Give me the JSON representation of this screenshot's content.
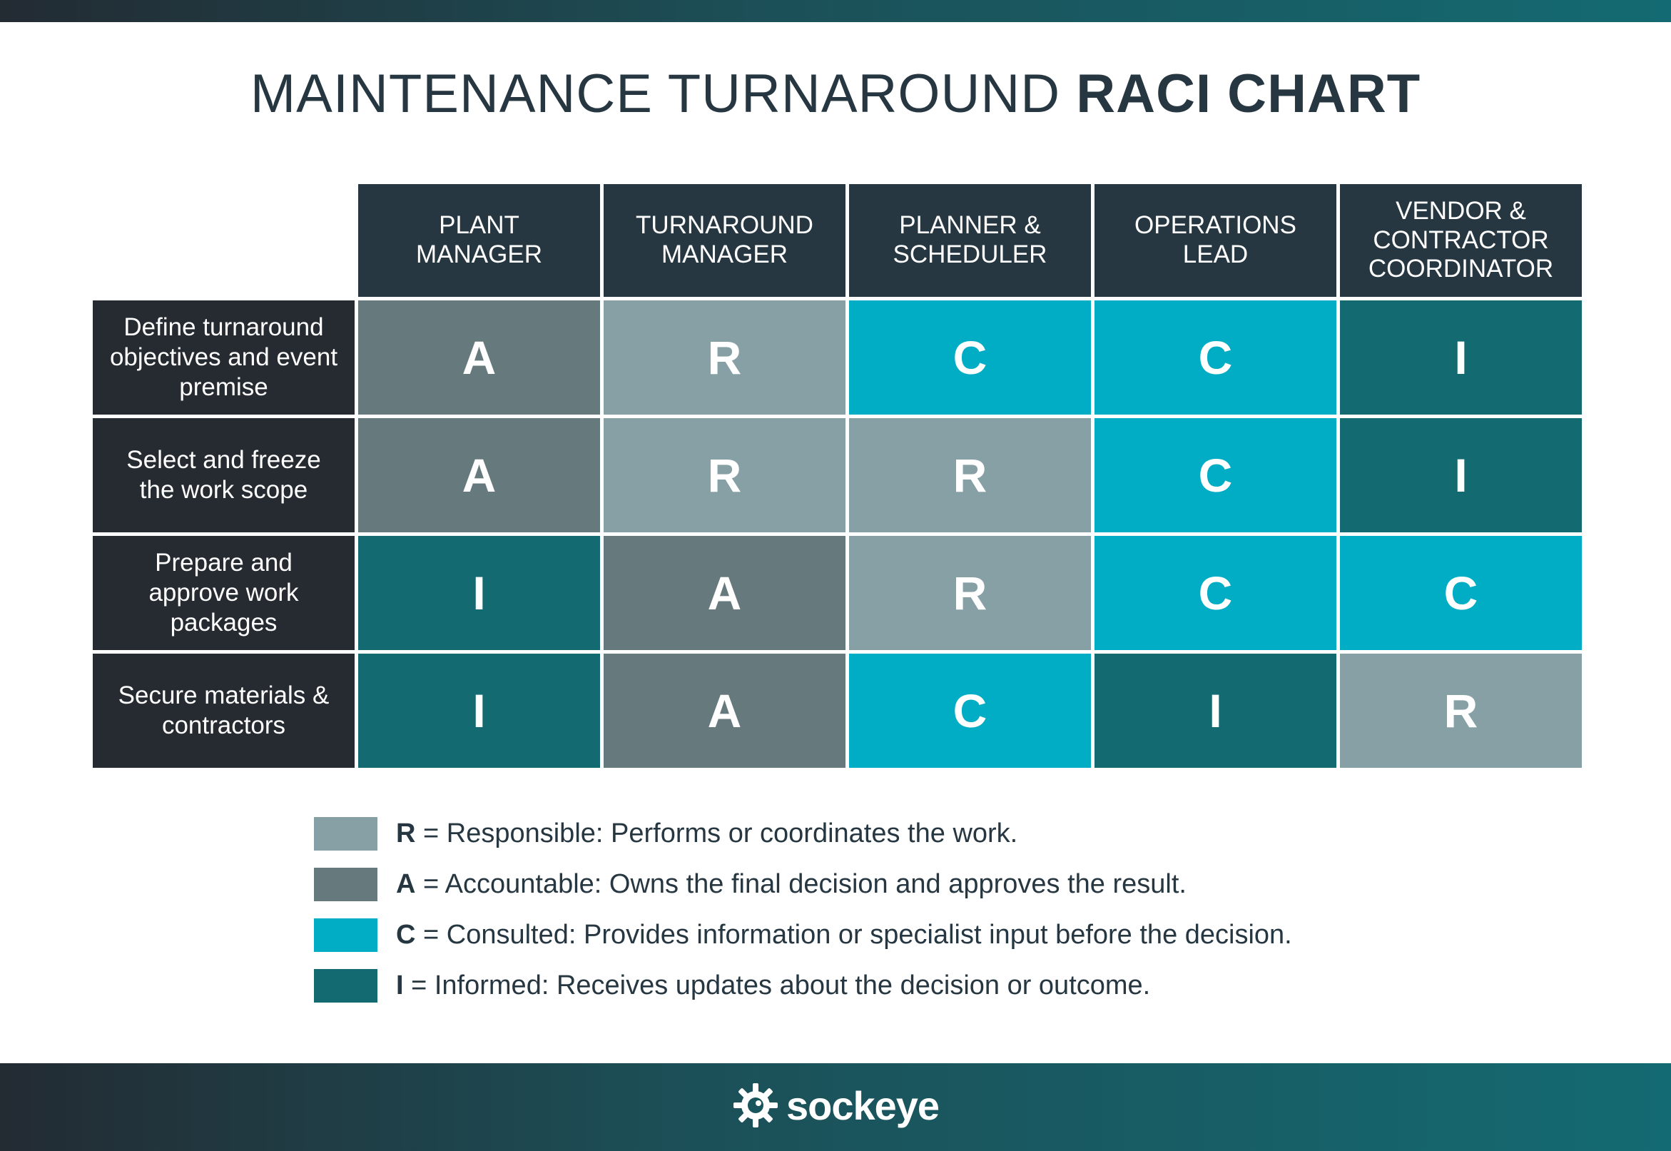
{
  "title": {
    "light": "MAINTENANCE TURNAROUND",
    "bold": "RACI CHART"
  },
  "colors": {
    "R": "#87a0a6",
    "A": "#66797c",
    "C": "#00adc4",
    "I": "#136a71",
    "header_bg": "#263741",
    "row_header_bg": "#262b31"
  },
  "columns": [
    "PLANT\nMANAGER",
    "TURNAROUND\nMANAGER",
    "PLANNER &\nSCHEDULER",
    "OPERATIONS\nLEAD",
    "VENDOR &\nCONTRACTOR\nCOORDINATOR"
  ],
  "rows": [
    {
      "task": "Define turnaround objectives and event premise",
      "cells": [
        "A",
        "R",
        "C",
        "C",
        "I"
      ]
    },
    {
      "task": "Select and freeze the work scope",
      "cells": [
        "A",
        "R",
        "R",
        "C",
        "I"
      ]
    },
    {
      "task": "Prepare and approve work packages",
      "cells": [
        "I",
        "A",
        "R",
        "C",
        "C"
      ]
    },
    {
      "task": "Secure materials & contractors",
      "cells": [
        "I",
        "A",
        "C",
        "I",
        "R"
      ]
    }
  ],
  "legend": [
    {
      "key": "R",
      "text": " = Responsible: Performs or coordinates the work."
    },
    {
      "key": "A",
      "text": " = Accountable: Owns the final decision and approves the result."
    },
    {
      "key": "C",
      "text": " = Consulted: Provides information or specialist input before the decision."
    },
    {
      "key": "I",
      "text": " = Informed: Receives updates about the decision or outcome."
    }
  ],
  "footer": {
    "logo_text": "sockeye",
    "logo_icon": "gear-icon"
  }
}
